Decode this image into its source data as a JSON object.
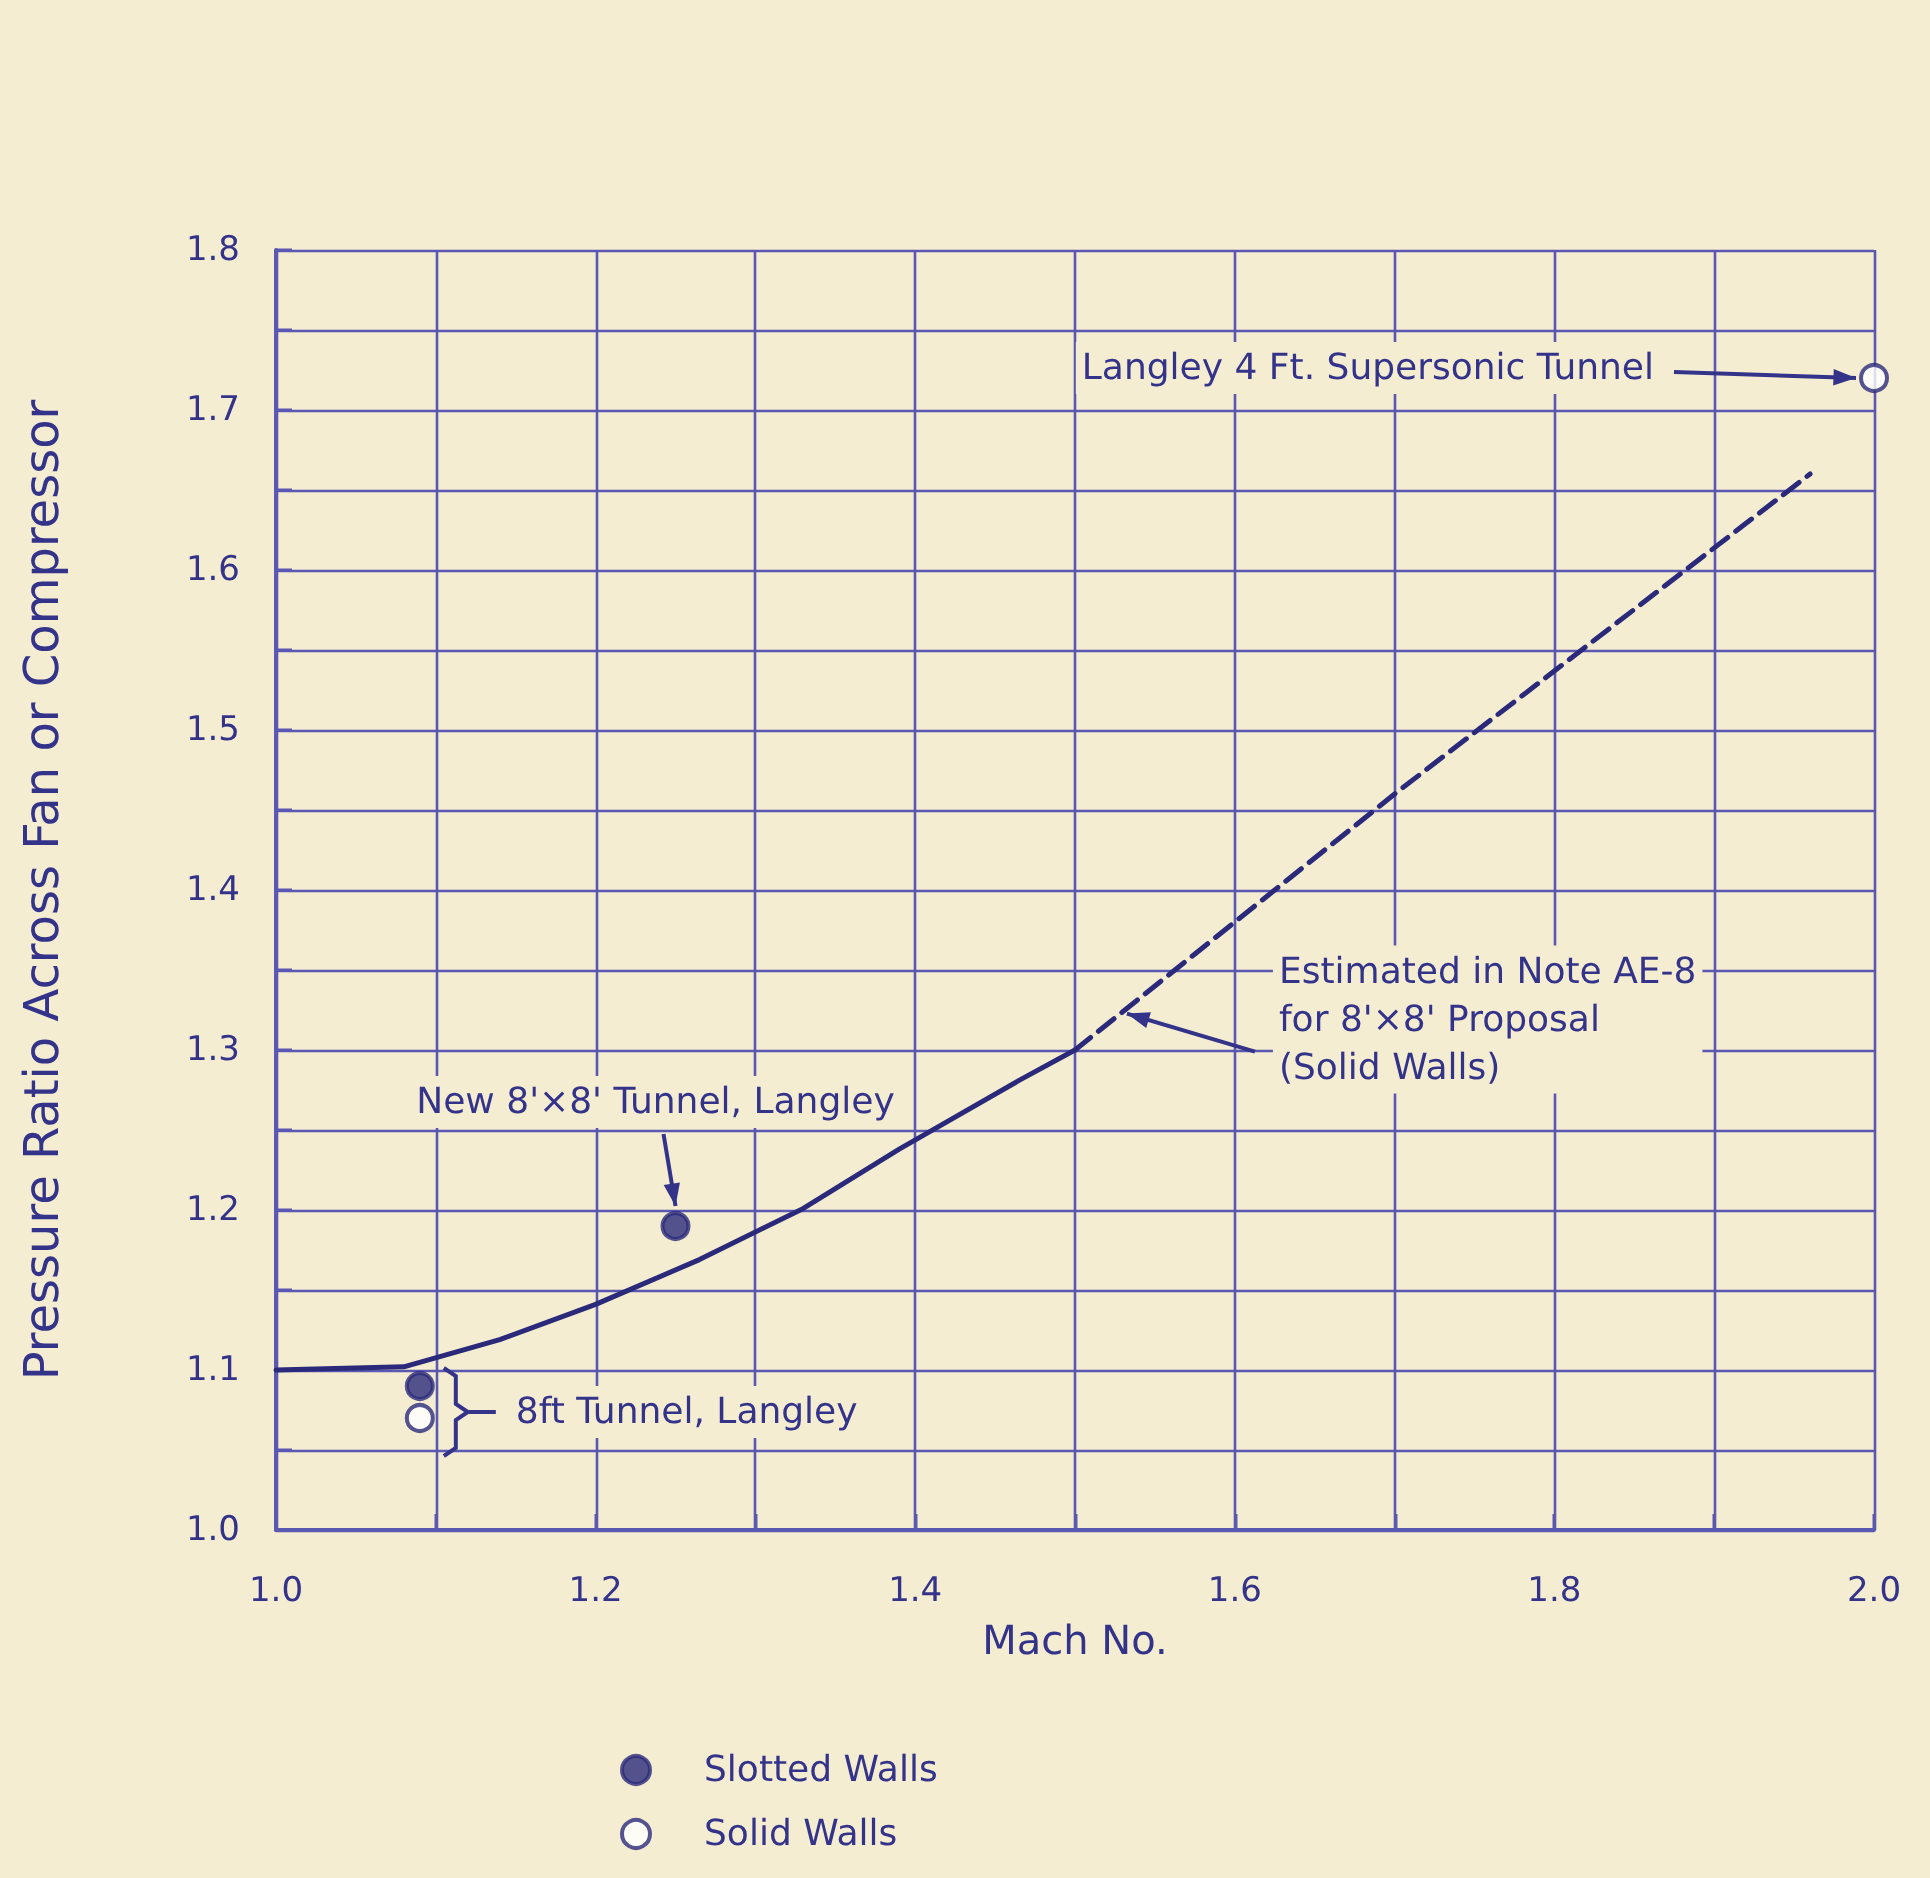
{
  "chart_data": {
    "type": "scatter",
    "xlabel": "Mach No.",
    "ylabel": "Pressure Ratio Across Fan or Compressor",
    "xlim": [
      1,
      2
    ],
    "ylim": [
      1,
      1.8
    ],
    "xticks": [
      {
        "value": 1,
        "label": "1.0"
      },
      {
        "value": 1.1,
        "label": null
      },
      1.2,
      {
        "value": 1.3,
        "label": null
      },
      1.4,
      {
        "value": 1.5,
        "label": null
      },
      1.6,
      {
        "value": 1.7,
        "label": null
      },
      1.8,
      {
        "value": 1.9,
        "label": null
      },
      {
        "value": 2,
        "label": "2.0"
      }
    ],
    "yticks": [
      {
        "value": 1,
        "label": "1.0"
      },
      {
        "value": 1.05,
        "label": null
      },
      1.1,
      {
        "value": 1.15,
        "label": null
      },
      1.2,
      {
        "value": 1.25,
        "label": null
      },
      1.3,
      {
        "value": 1.35,
        "label": null
      },
      1.4,
      {
        "value": 1.45,
        "label": null
      },
      1.5,
      {
        "value": 1.55,
        "label": null
      },
      1.6,
      {
        "value": 1.65,
        "label": null
      },
      1.7,
      {
        "value": 1.75,
        "label": null
      },
      1.8
    ],
    "grid": true,
    "legend": "bottom",
    "series": [
      {
        "name": "Slotted Walls",
        "color": "#2b2a7a",
        "marker": "circle",
        "x": [
          1.09,
          1.25
        ],
        "values": [
          1.09,
          1.19
        ]
      },
      {
        "name": "Solid Walls",
        "color": "#2b2a7a",
        "marker": "open circle",
        "x": [
          1.09,
          2.0
        ],
        "values": [
          1.07,
          1.72
        ]
      },
      {
        "type": "line",
        "color": "#2b2a7a",
        "marker": "none",
        "line_style": "solid",
        "x": [
          1.0,
          1.08,
          1.14,
          1.2,
          1.265,
          1.33,
          1.39,
          1.465,
          1.5
        ],
        "values": [
          1.1,
          1.102,
          1.119,
          1.141,
          1.169,
          1.201,
          1.238,
          1.281,
          1.3
        ]
      },
      {
        "type": "line",
        "color": "#2b2a7a",
        "marker": "none",
        "line_style": "dashed",
        "x": [
          1.5,
          1.7,
          1.96
        ],
        "values": [
          1.3,
          1.46,
          1.66
        ]
      }
    ],
    "annotations": [
      {
        "text": "Langley 4 Ft. Supersonic Tunnel",
        "x": 2.0,
        "y": 1.72
      },
      {
        "text": "New 8'×8' Tunnel, Langley",
        "x": 1.25,
        "y": 1.19
      },
      {
        "text": "8ft Tunnel, Langley",
        "x": 1.09,
        "y": 1.08
      },
      {
        "text": "Estimated in Note AE-8\nfor 8'×8' Proposal\n(Solid Walls)",
        "x": 1.53,
        "y": 1.324
      }
    ]
  }
}
